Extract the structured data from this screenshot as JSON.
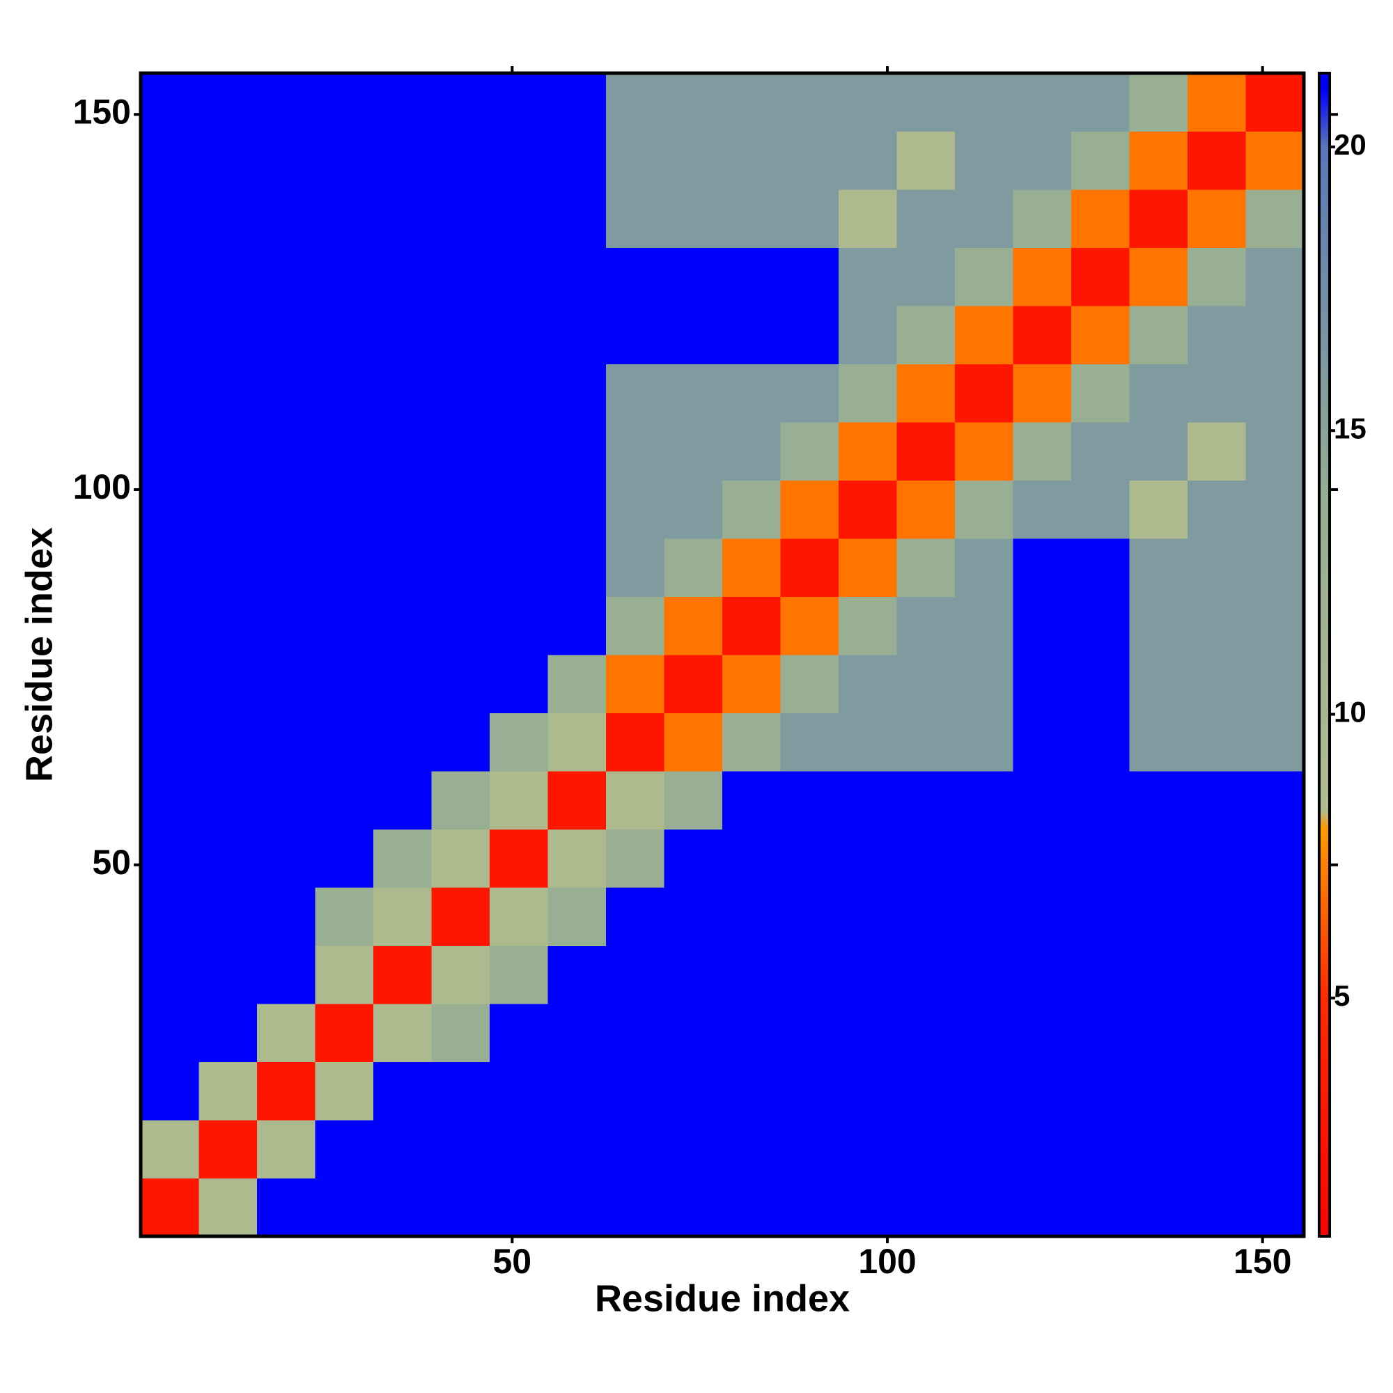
{
  "chart_data": {
    "type": "heatmap",
    "xlabel": "Residue index",
    "ylabel": "Residue index",
    "xlim": [
      0.5,
      155.5
    ],
    "ylim": [
      0.5,
      155.5
    ],
    "xticks": [
      50,
      100,
      150
    ],
    "yticks": [
      50,
      100,
      150
    ],
    "zlim": [
      0.8,
      21.3
    ],
    "zticks": [
      5,
      10,
      15,
      20
    ],
    "colorscale": [
      [
        0.8,
        "#ff0000"
      ],
      [
        5,
        "#ff2a00"
      ],
      [
        8,
        "#ff9a00"
      ],
      [
        8.3,
        "#b0bc8c"
      ],
      [
        14,
        "#94ac94"
      ],
      [
        20,
        "#5878b8"
      ],
      [
        21,
        "#0000ff"
      ],
      [
        21.3,
        "#0000ff"
      ]
    ],
    "z": [
      [
        3,
        9,
        21.3,
        21.3,
        21.3,
        21.3,
        21.3,
        21.3,
        21.3,
        21.3,
        21.3,
        21.3,
        21.3,
        21.3,
        21.3,
        21.3,
        21.3,
        21.3,
        21.3,
        21.3
      ],
      [
        9,
        3,
        9,
        21.3,
        21.3,
        21.3,
        21.3,
        21.3,
        21.3,
        21.3,
        21.3,
        21.3,
        21.3,
        21.3,
        21.3,
        21.3,
        21.3,
        21.3,
        21.3,
        21.3
      ],
      [
        21.3,
        9,
        3,
        9,
        21.3,
        21.3,
        21.3,
        21.3,
        21.3,
        21.3,
        21.3,
        21.3,
        21.3,
        21.3,
        21.3,
        21.3,
        21.3,
        21.3,
        21.3,
        21.3
      ],
      [
        21.3,
        21.3,
        9,
        3,
        9,
        13,
        21.3,
        21.3,
        21.3,
        21.3,
        21.3,
        21.3,
        21.3,
        21.3,
        21.3,
        21.3,
        21.3,
        21.3,
        21.3,
        21.3
      ],
      [
        21.3,
        21.3,
        21.3,
        9,
        3,
        9,
        13,
        21.3,
        21.3,
        21.3,
        21.3,
        21.3,
        21.3,
        21.3,
        21.3,
        21.3,
        21.3,
        21.3,
        21.3,
        21.3
      ],
      [
        21.3,
        21.3,
        21.3,
        13,
        9,
        3,
        9,
        13,
        21.3,
        21.3,
        21.3,
        21.3,
        21.3,
        21.3,
        21.3,
        21.3,
        21.3,
        21.3,
        21.3,
        21.3
      ],
      [
        21.3,
        21.3,
        21.3,
        21.3,
        13,
        9,
        3,
        9,
        13,
        21.3,
        21.3,
        21.3,
        21.3,
        21.3,
        21.3,
        21.3,
        21.3,
        21.3,
        21.3,
        21.3
      ],
      [
        21.3,
        21.3,
        21.3,
        21.3,
        21.3,
        13,
        9,
        3,
        9,
        13,
        21.3,
        21.3,
        21.3,
        21.3,
        21.3,
        21.3,
        21.3,
        21.3,
        21.3,
        21.3
      ],
      [
        21.3,
        21.3,
        21.3,
        21.3,
        21.3,
        21.3,
        13,
        9,
        3,
        7,
        13,
        16,
        16,
        16,
        16,
        21.3,
        21.3,
        16,
        16,
        16
      ],
      [
        21.3,
        21.3,
        21.3,
        21.3,
        21.3,
        21.3,
        21.3,
        13,
        7,
        3,
        7,
        13,
        16,
        16,
        16,
        21.3,
        21.3,
        16,
        16,
        16
      ],
      [
        21.3,
        21.3,
        21.3,
        21.3,
        21.3,
        21.3,
        21.3,
        21.3,
        13,
        7,
        3,
        7,
        13,
        16,
        16,
        21.3,
        21.3,
        16,
        16,
        16
      ],
      [
        21.3,
        21.3,
        21.3,
        21.3,
        21.3,
        21.3,
        21.3,
        21.3,
        16,
        13,
        7,
        3,
        7,
        13,
        16,
        21.3,
        21.3,
        16,
        16,
        16
      ],
      [
        21.3,
        21.3,
        21.3,
        21.3,
        21.3,
        21.3,
        21.3,
        21.3,
        16,
        16,
        13,
        7,
        3,
        7,
        13,
        16,
        16,
        9,
        16,
        16
      ],
      [
        21.3,
        21.3,
        21.3,
        21.3,
        21.3,
        21.3,
        21.3,
        21.3,
        16,
        16,
        16,
        13,
        7,
        3,
        7,
        13,
        16,
        16,
        9,
        16
      ],
      [
        21.3,
        21.3,
        21.3,
        21.3,
        21.3,
        21.3,
        21.3,
        21.3,
        16,
        16,
        16,
        16,
        13,
        7,
        3,
        7,
        13,
        16,
        16,
        16
      ],
      [
        21.3,
        21.3,
        21.3,
        21.3,
        21.3,
        21.3,
        21.3,
        21.3,
        21.3,
        21.3,
        21.3,
        21.3,
        16,
        13,
        7,
        3,
        7,
        13,
        16,
        16
      ],
      [
        21.3,
        21.3,
        21.3,
        21.3,
        21.3,
        21.3,
        21.3,
        21.3,
        21.3,
        21.3,
        21.3,
        21.3,
        16,
        16,
        13,
        7,
        3,
        7,
        13,
        16
      ],
      [
        21.3,
        21.3,
        21.3,
        21.3,
        21.3,
        21.3,
        21.3,
        21.3,
        16,
        16,
        16,
        16,
        9,
        16,
        16,
        13,
        7,
        3,
        7,
        13
      ],
      [
        21.3,
        21.3,
        21.3,
        21.3,
        21.3,
        21.3,
        21.3,
        21.3,
        16,
        16,
        16,
        16,
        16,
        9,
        16,
        16,
        13,
        7,
        3,
        7
      ],
      [
        21.3,
        21.3,
        21.3,
        21.3,
        21.3,
        21.3,
        21.3,
        21.3,
        16,
        16,
        16,
        16,
        16,
        16,
        16,
        16,
        16,
        13,
        7,
        3
      ]
    ]
  }
}
